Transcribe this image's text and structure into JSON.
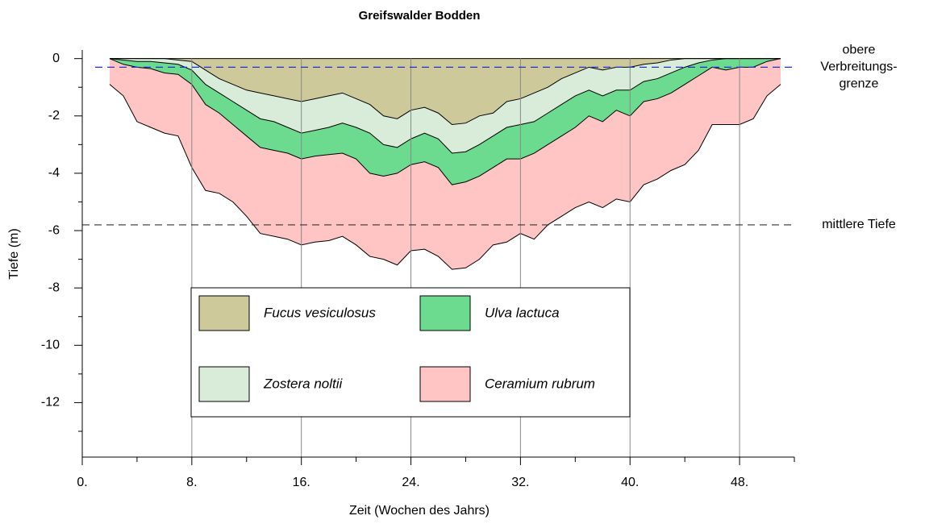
{
  "chart_data": {
    "type": "stacked_area",
    "title": "Greifswalder Bodden",
    "xlabel": "Zeit (Wochen des Jahrs)",
    "ylabel": "Tiefe (m)",
    "x": [
      2,
      3,
      4,
      5,
      6,
      7,
      8,
      9,
      10,
      11,
      12,
      13,
      14,
      15,
      16,
      17,
      18,
      19,
      20,
      21,
      22,
      23,
      24,
      25,
      26,
      27,
      28,
      29,
      30,
      31,
      32,
      33,
      34,
      35,
      36,
      37,
      38,
      39,
      40,
      41,
      42,
      43,
      44,
      45,
      46,
      47,
      48,
      49,
      50,
      51
    ],
    "series": [
      {
        "name": "Fucus vesiculosus",
        "color": "#cdc99a",
        "values": [
          0,
          0,
          0,
          0,
          0,
          -0.05,
          -0.1,
          -0.4,
          -0.7,
          -0.9,
          -1.1,
          -1.2,
          -1.3,
          -1.4,
          -1.5,
          -1.4,
          -1.3,
          -1.2,
          -1.4,
          -1.6,
          -2.0,
          -2.1,
          -1.8,
          -1.7,
          -1.9,
          -2.3,
          -2.25,
          -2.0,
          -1.9,
          -1.5,
          -1.4,
          -1.2,
          -1.0,
          -0.7,
          -0.5,
          -0.3,
          -0.4,
          -0.3,
          -0.3,
          -0.2,
          -0.15,
          -0.05,
          0,
          0,
          0,
          0,
          0,
          0,
          0,
          0
        ]
      },
      {
        "name": "Zostera noltii",
        "color": "#d9ecd9",
        "values": [
          0,
          -0.05,
          -0.1,
          -0.1,
          -0.15,
          -0.15,
          -0.3,
          -0.5,
          -0.5,
          -0.6,
          -0.7,
          -0.9,
          -0.9,
          -1.0,
          -1.1,
          -1.1,
          -1.1,
          -1.05,
          -1.0,
          -1.0,
          -1.0,
          -1.0,
          -1.0,
          -0.9,
          -0.9,
          -1.0,
          -1.0,
          -1.0,
          -0.8,
          -0.9,
          -0.9,
          -1.0,
          -0.9,
          -0.9,
          -0.8,
          -0.8,
          -0.9,
          -0.8,
          -0.8,
          -0.6,
          -0.55,
          -0.45,
          -0.3,
          -0.15,
          -0.05,
          0,
          0,
          0,
          0,
          0
        ]
      },
      {
        "name": "Ulva lactuca",
        "color": "#6cdb8f",
        "values": [
          0,
          -0.15,
          -0.2,
          -0.25,
          -0.35,
          -0.35,
          -0.5,
          -0.7,
          -0.7,
          -0.8,
          -0.9,
          -1.0,
          -1.0,
          -0.9,
          -0.9,
          -0.9,
          -0.95,
          -1.05,
          -1.1,
          -1.4,
          -1.1,
          -0.9,
          -0.9,
          -1.0,
          -1.0,
          -1.1,
          -1.05,
          -1.1,
          -1.1,
          -1.1,
          -1.2,
          -1.1,
          -1.1,
          -1.1,
          -1.1,
          -0.9,
          -0.9,
          -0.7,
          -0.9,
          -0.7,
          -0.7,
          -0.7,
          -0.6,
          -0.45,
          -0.25,
          -0.4,
          -0.3,
          -0.3,
          -0.1,
          0
        ]
      },
      {
        "name": "Ceramium rubrum",
        "color": "#ffc4c4",
        "values": [
          -0.9,
          -1.1,
          -1.9,
          -2.05,
          -2.1,
          -2.15,
          -2.9,
          -3.0,
          -2.8,
          -2.7,
          -2.8,
          -3.0,
          -3.0,
          -3.0,
          -3.0,
          -3.0,
          -3.0,
          -2.9,
          -3.0,
          -2.9,
          -2.9,
          -3.2,
          -3.0,
          -3.05,
          -3.1,
          -2.95,
          -3.0,
          -2.9,
          -2.7,
          -2.9,
          -2.6,
          -3.0,
          -2.8,
          -2.8,
          -2.8,
          -3.0,
          -3.0,
          -3.1,
          -3.0,
          -2.9,
          -2.8,
          -2.7,
          -2.8,
          -2.6,
          -2.0,
          -1.9,
          -2.0,
          -1.8,
          -1.2,
          -0.9
        ]
      }
    ],
    "reference_lines": [
      {
        "value": -0.3,
        "color": "#2233cc",
        "label": [
          "obere",
          "Verbreitungs-",
          "grenze"
        ]
      },
      {
        "value": -5.8,
        "color": "#333333",
        "label": [
          "mittlere Tiefe"
        ]
      }
    ],
    "xlim": [
      0,
      52
    ],
    "ylim": [
      -13.9,
      0.3
    ],
    "xticks": [
      {
        "value": 0,
        "label": "0."
      },
      {
        "value": 8,
        "label": "8."
      },
      {
        "value": 16,
        "label": "16."
      },
      {
        "value": 24,
        "label": "24."
      },
      {
        "value": 32,
        "label": "32."
      },
      {
        "value": 40,
        "label": "40."
      },
      {
        "value": 48,
        "label": "48."
      }
    ],
    "xminor": [
      4,
      12,
      20,
      28,
      36,
      44,
      52
    ],
    "yticks": [
      0,
      -2,
      -4,
      -6,
      -8,
      -10,
      -12
    ],
    "yminor": [
      -1,
      -3,
      -5,
      -7,
      -9,
      -11,
      -13
    ],
    "grid": "x"
  }
}
